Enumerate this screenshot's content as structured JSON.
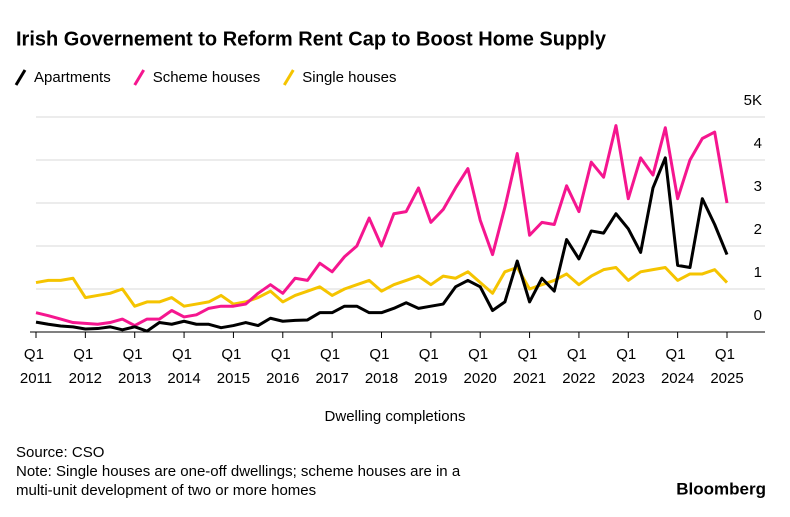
{
  "chart_data": {
    "type": "line",
    "title": "Irish Governement to Reform Rent Cap to Boost Home Supply",
    "xlabel": "Dwelling completions",
    "source": "Source: CSO",
    "note": "Note: Single houses are one-off dwellings; scheme houses are in a multi-unit development of two or more homes",
    "brand": "Bloomberg",
    "categories": [
      "Q1 2011",
      null,
      null,
      null,
      "Q1 2012",
      null,
      null,
      null,
      "Q1 2013",
      null,
      null,
      null,
      "Q1 2014",
      null,
      null,
      null,
      "Q1 2015",
      null,
      null,
      null,
      "Q1 2016",
      null,
      null,
      null,
      "Q1 2017",
      null,
      null,
      null,
      "Q1 2018",
      null,
      null,
      null,
      "Q1 2019",
      null,
      null,
      null,
      "Q1 2020",
      null,
      null,
      null,
      "Q1 2021",
      null,
      null,
      null,
      "Q1 2022",
      null,
      null,
      null,
      "Q1 2023",
      null,
      null,
      null,
      "Q1 2024",
      null,
      null,
      null,
      "Q1 2025"
    ],
    "series": [
      {
        "name": "Apartments",
        "color": "#000000",
        "values": [
          0.23,
          0.18,
          0.14,
          0.12,
          0.07,
          0.08,
          0.12,
          0.05,
          0.12,
          0.02,
          0.22,
          0.18,
          0.25,
          0.18,
          0.18,
          0.1,
          0.15,
          0.22,
          0.15,
          0.32,
          0.25,
          0.27,
          0.28,
          0.45,
          0.45,
          0.6,
          0.6,
          0.45,
          0.45,
          0.55,
          0.68,
          0.55,
          0.6,
          0.65,
          1.05,
          1.2,
          1.05,
          0.5,
          0.7,
          1.65,
          0.7,
          1.25,
          0.95,
          2.15,
          1.7,
          2.35,
          2.3,
          2.75,
          2.4,
          1.85,
          3.35,
          4.05,
          1.55,
          1.5,
          3.1,
          2.5,
          1.8
        ]
      },
      {
        "name": "Scheme houses",
        "color": "#f5168f",
        "values": [
          0.45,
          0.38,
          0.3,
          0.22,
          0.2,
          0.18,
          0.22,
          0.3,
          0.15,
          0.3,
          0.3,
          0.5,
          0.35,
          0.4,
          0.55,
          0.6,
          0.6,
          0.65,
          0.9,
          1.1,
          0.9,
          1.25,
          1.2,
          1.6,
          1.4,
          1.75,
          2.0,
          2.65,
          2.0,
          2.75,
          2.8,
          3.35,
          2.55,
          2.85,
          3.35,
          3.8,
          2.6,
          1.8,
          2.9,
          4.15,
          2.25,
          2.55,
          2.5,
          3.4,
          2.8,
          3.95,
          3.6,
          4.8,
          3.1,
          4.05,
          3.65,
          4.75,
          3.1,
          4.0,
          4.5,
          4.65,
          3.0
        ]
      },
      {
        "name": "Single houses",
        "color": "#f5c400",
        "values": [
          1.15,
          1.2,
          1.2,
          1.25,
          0.8,
          0.85,
          0.9,
          1.0,
          0.6,
          0.7,
          0.7,
          0.8,
          0.6,
          0.65,
          0.7,
          0.85,
          0.65,
          0.7,
          0.8,
          0.95,
          0.7,
          0.85,
          0.95,
          1.05,
          0.85,
          1.0,
          1.1,
          1.2,
          0.95,
          1.1,
          1.2,
          1.3,
          1.1,
          1.3,
          1.25,
          1.4,
          1.15,
          0.9,
          1.4,
          1.5,
          1.0,
          1.1,
          1.2,
          1.35,
          1.1,
          1.3,
          1.45,
          1.5,
          1.2,
          1.4,
          1.45,
          1.5,
          1.2,
          1.35,
          1.35,
          1.45,
          1.15
        ]
      }
    ],
    "ylim": [
      0,
      5
    ],
    "yticks": [
      0,
      1,
      2,
      3,
      4,
      {
        "value": 5,
        "label": "5K"
      }
    ],
    "grid": true
  }
}
